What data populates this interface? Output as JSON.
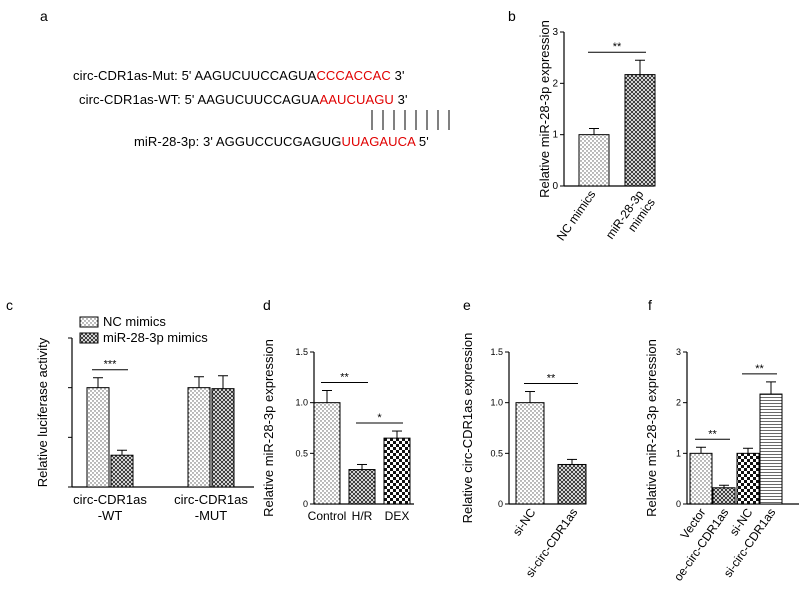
{
  "panels": {
    "a": {
      "label": "a",
      "mut": {
        "prefix": "circ-CDR1as-Mut: 5' AAGUCUUCCAGUA",
        "site": "CCCACCAC",
        "suffix": " 3'"
      },
      "wt": {
        "prefix": "circ-CDR1as-WT: 5' AAGUCUUCCAGUA",
        "site": "AAUCUAGU",
        "suffix": " 3'"
      },
      "mir": {
        "prefix": "miR-28-3p: 3' AGGUCCUCGAGUG",
        "site": "UUAGAUCA",
        "suffix": " 5'"
      }
    },
    "b": {
      "label": "b"
    },
    "c": {
      "label": "c"
    },
    "d": {
      "label": "d"
    },
    "e": {
      "label": "e"
    },
    "f": {
      "label": "f"
    }
  },
  "chart_data": [
    {
      "id": "b",
      "type": "bar",
      "ylabel": "Relative miR-28-3p expression",
      "ylim": [
        0,
        3
      ],
      "yticks": [
        "0",
        "1",
        "2",
        "3"
      ],
      "categories": [
        "NC mimics",
        "miR-28-3p mimics"
      ],
      "values": [
        1.0,
        2.17
      ],
      "errors": [
        0.12,
        0.28
      ],
      "patterns": [
        "dots",
        "cross"
      ],
      "significance": [
        {
          "from": 0,
          "to": 1,
          "label": "**"
        }
      ]
    },
    {
      "id": "c",
      "type": "bar",
      "ylabel": "Relative luciferase activity",
      "ylim": [
        0,
        1.5
      ],
      "yticks": [],
      "categories": [
        "circ-CDR1as -WT",
        "circ-CDR1as -MUT"
      ],
      "series": [
        {
          "name": "NC mimics",
          "values": [
            1.0,
            1.0
          ],
          "errors": [
            0.1,
            0.11
          ],
          "pattern": "dots"
        },
        {
          "name": "miR-28-3p mimics",
          "values": [
            0.32,
            0.99
          ],
          "errors": [
            0.05,
            0.13
          ],
          "pattern": "cross"
        }
      ],
      "legend": "top-left",
      "significance": [
        {
          "group": 0,
          "label": "***"
        }
      ]
    },
    {
      "id": "d",
      "type": "bar",
      "ylabel": "Relative miR-28-3p expression",
      "ylim": [
        0,
        1.5
      ],
      "yticks": [
        "0",
        "0.5",
        "1.0",
        "1.5"
      ],
      "categories": [
        "Control",
        "H/R",
        "DEX"
      ],
      "values": [
        1.0,
        0.34,
        0.65
      ],
      "errors": [
        0.12,
        0.05,
        0.07
      ],
      "patterns": [
        "dots",
        "cross",
        "check"
      ],
      "significance": [
        {
          "from": 0,
          "to": 1,
          "label": "**"
        },
        {
          "from": 1,
          "to": 2,
          "label": "*"
        }
      ]
    },
    {
      "id": "e",
      "type": "bar",
      "ylabel": "Relative circ-CDR1as expression",
      "ylim": [
        0,
        1.5
      ],
      "yticks": [
        "0",
        "0.5",
        "1.0",
        "1.5"
      ],
      "categories": [
        "si-NC",
        "si-circ-CDR1as"
      ],
      "values": [
        1.0,
        0.39
      ],
      "errors": [
        0.11,
        0.05
      ],
      "patterns": [
        "dots",
        "cross"
      ],
      "significance": [
        {
          "from": 0,
          "to": 1,
          "label": "**"
        }
      ]
    },
    {
      "id": "f",
      "type": "bar",
      "ylabel": "Relative miR-28-3p expression",
      "ylim": [
        0,
        3
      ],
      "yticks": [
        "0",
        "1",
        "2",
        "3"
      ],
      "categories": [
        "Vector",
        "oe-circ-CDR1as",
        "si-NC",
        "si-circ-CDR1as"
      ],
      "values": [
        1.0,
        0.32,
        1.0,
        2.17
      ],
      "errors": [
        0.12,
        0.05,
        0.1,
        0.24
      ],
      "patterns": [
        "dots",
        "cross",
        "check",
        "hlines"
      ],
      "significance": [
        {
          "from": 0,
          "to": 1,
          "label": "**"
        },
        {
          "from": 2,
          "to": 3,
          "label": "**"
        }
      ]
    }
  ]
}
